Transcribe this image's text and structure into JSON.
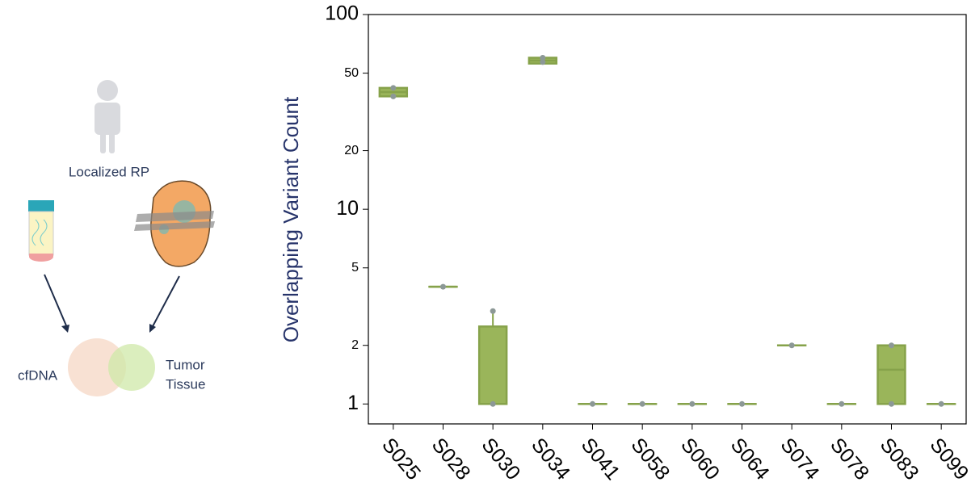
{
  "diagram": {
    "subject": "Localized RP",
    "left_label": "cfDNA",
    "right_label": [
      "Tumor",
      "Tissue"
    ]
  },
  "chart_data": {
    "type": "box",
    "y_label": "Overlapping Variant Count",
    "categories": [
      "S025",
      "S028",
      "S030",
      "S034",
      "S041",
      "S058",
      "S060",
      "S064",
      "S074",
      "S078",
      "S083",
      "S099"
    ],
    "q1": [
      38,
      4,
      1,
      56,
      1,
      1,
      1,
      1,
      2,
      1,
      1,
      1
    ],
    "median": [
      40,
      4,
      1,
      58,
      1,
      1,
      1,
      1,
      2,
      1,
      1.5,
      1
    ],
    "q3": [
      42,
      4,
      2.5,
      60,
      1,
      1,
      1,
      1,
      2,
      1,
      2,
      1
    ],
    "whisker_low": [
      38,
      4,
      1,
      56,
      1,
      1,
      1,
      1,
      2,
      1,
      1,
      1
    ],
    "whisker_high": [
      42,
      4,
      3,
      60,
      1,
      1,
      1,
      1,
      2,
      1,
      2,
      1
    ],
    "points": [
      [
        38,
        42
      ],
      [
        4
      ],
      [
        1,
        3
      ],
      [
        57,
        60
      ],
      [
        1
      ],
      [
        1
      ],
      [
        1
      ],
      [
        1
      ],
      [
        2
      ],
      [
        1
      ],
      [
        1,
        2
      ],
      [
        1
      ]
    ],
    "color": "#9ab55a",
    "edge_color": "#86a24a",
    "point_color": "#8c9896",
    "ylim": [
      0.79,
      100
    ],
    "yticks": [
      1,
      2,
      5,
      10,
      20,
      50,
      100
    ],
    "log_y": true,
    "grid": false
  }
}
